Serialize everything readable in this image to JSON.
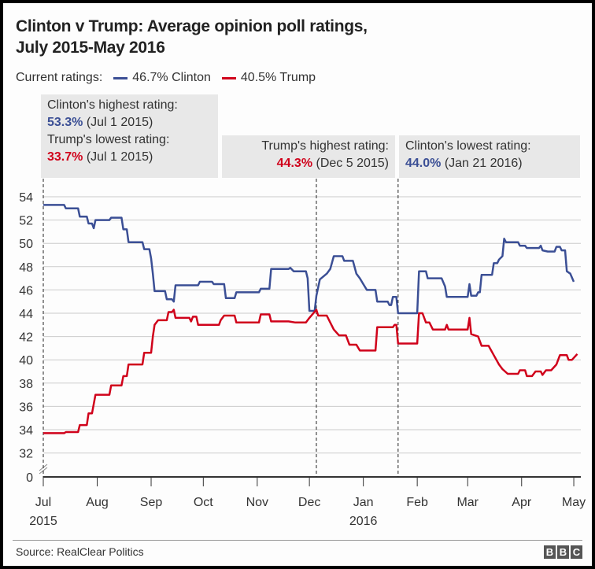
{
  "chart_data": {
    "type": "line",
    "title": "Clinton v Trump: Average opinion poll ratings, July 2015-May 2016",
    "title_lines": [
      "Clinton v Trump: Average opinion poll ratings,",
      "July 2015-May 2016"
    ],
    "legend": {
      "prefix": "Current ratings:",
      "items": [
        {
          "label": "46.7% Clinton",
          "color": "#3b4f95"
        },
        {
          "label": "40.5% Trump",
          "color": "#d0021b"
        }
      ],
      "placement": "top"
    },
    "y_ticks": [
      "54",
      "52",
      "50",
      "48",
      "46",
      "44",
      "42",
      "40",
      "38",
      "36",
      "34",
      "32",
      "0"
    ],
    "ylim": [
      32,
      54
    ],
    "y_axis_break": true,
    "grid": true,
    "x_ticks": [
      {
        "label": "Jul",
        "year": "2015",
        "date": "2015-07-01"
      },
      {
        "label": "Aug",
        "year": "",
        "date": "2015-08-01"
      },
      {
        "label": "Sep",
        "year": "",
        "date": "2015-09-01"
      },
      {
        "label": "Oct",
        "year": "",
        "date": "2015-10-01"
      },
      {
        "label": "Nov",
        "year": "",
        "date": "2015-11-01"
      },
      {
        "label": "Dec",
        "year": "",
        "date": "2015-12-01"
      },
      {
        "label": "Jan",
        "year": "2016",
        "date": "2016-01-01"
      },
      {
        "label": "Feb",
        "year": "",
        "date": "2016-02-01"
      },
      {
        "label": "Mar",
        "year": "",
        "date": "2016-03-01"
      },
      {
        "label": "Apr",
        "year": "",
        "date": "2016-04-01"
      },
      {
        "label": "May",
        "year": "",
        "date": "2016-05-01"
      }
    ],
    "annotations": [
      {
        "label": "Clinton's highest rating:",
        "value": "53.3%",
        "date": "(Jul 1 2015)",
        "color": "#3b4f95"
      },
      {
        "label": "Trump's lowest rating:",
        "value": "33.7%",
        "date": "(Jul 1 2015)",
        "color": "#d0021b"
      },
      {
        "label": "Trump's highest rating:",
        "value": "44.3%",
        "date": "(Dec 5 2015)",
        "color": "#d0021b"
      },
      {
        "label": "Clinton's lowest rating:",
        "value": "44.0%",
        "date": "(Jan 21 2016)",
        "color": "#3b4f95"
      }
    ],
    "marker_dates": [
      "2015-07-01",
      "2015-12-05",
      "2016-01-21"
    ],
    "series": [
      {
        "name": "Clinton",
        "color": "#3b4f95",
        "points": [
          [
            "2015-07-01",
            53.3
          ],
          [
            "2015-07-13",
            53.3
          ],
          [
            "2015-07-14",
            53.0
          ],
          [
            "2015-07-21",
            53.0
          ],
          [
            "2015-07-22",
            52.3
          ],
          [
            "2015-07-26",
            52.3
          ],
          [
            "2015-07-27",
            51.7
          ],
          [
            "2015-07-29",
            51.7
          ],
          [
            "2015-07-30",
            51.3
          ],
          [
            "2015-07-31",
            52.0
          ],
          [
            "2015-08-08",
            52.0
          ],
          [
            "2015-08-09",
            52.2
          ],
          [
            "2015-08-15",
            52.2
          ],
          [
            "2015-08-16",
            51.2
          ],
          [
            "2015-08-18",
            51.2
          ],
          [
            "2015-08-19",
            50.1
          ],
          [
            "2015-08-27",
            50.1
          ],
          [
            "2015-08-28",
            49.5
          ],
          [
            "2015-08-31",
            49.5
          ],
          [
            "2015-09-01",
            48.7
          ],
          [
            "2015-09-02",
            47.4
          ],
          [
            "2015-09-03",
            45.9
          ],
          [
            "2015-09-09",
            45.9
          ],
          [
            "2015-09-10",
            45.2
          ],
          [
            "2015-09-13",
            45.2
          ],
          [
            "2015-09-14",
            45.0
          ],
          [
            "2015-09-15",
            46.4
          ],
          [
            "2015-09-28",
            46.4
          ],
          [
            "2015-09-29",
            46.7
          ],
          [
            "2015-10-06",
            46.7
          ],
          [
            "2015-10-07",
            46.5
          ],
          [
            "2015-10-13",
            46.5
          ],
          [
            "2015-10-14",
            45.3
          ],
          [
            "2015-10-19",
            45.3
          ],
          [
            "2015-10-20",
            45.8
          ],
          [
            "2015-11-02",
            45.8
          ],
          [
            "2015-11-03",
            46.1
          ],
          [
            "2015-11-08",
            46.1
          ],
          [
            "2015-11-09",
            47.8
          ],
          [
            "2015-11-19",
            47.8
          ],
          [
            "2015-11-20",
            47.9
          ],
          [
            "2015-11-22",
            47.6
          ],
          [
            "2015-11-29",
            47.6
          ],
          [
            "2015-11-30",
            47.0
          ],
          [
            "2015-12-01",
            44.2
          ],
          [
            "2015-12-04",
            44.2
          ],
          [
            "2015-12-05",
            45.5
          ],
          [
            "2015-12-07",
            46.9
          ],
          [
            "2015-12-11",
            47.4
          ],
          [
            "2015-12-13",
            47.8
          ],
          [
            "2015-12-15",
            48.9
          ],
          [
            "2015-12-20",
            48.9
          ],
          [
            "2015-12-21",
            48.5
          ],
          [
            "2015-12-26",
            48.5
          ],
          [
            "2015-12-28",
            47.4
          ],
          [
            "2015-12-30",
            47.0
          ],
          [
            "2016-01-01",
            46.5
          ],
          [
            "2016-01-03",
            46.0
          ],
          [
            "2016-01-08",
            46.0
          ],
          [
            "2016-01-09",
            45.0
          ],
          [
            "2016-01-15",
            45.0
          ],
          [
            "2016-01-16",
            44.7
          ],
          [
            "2016-01-17",
            44.7
          ],
          [
            "2016-01-18",
            45.4
          ],
          [
            "2016-01-20",
            45.4
          ],
          [
            "2016-01-21",
            44.0
          ],
          [
            "2016-02-01",
            44.0
          ],
          [
            "2016-02-02",
            47.6
          ],
          [
            "2016-02-06",
            47.6
          ],
          [
            "2016-02-07",
            47.0
          ],
          [
            "2016-02-15",
            47.0
          ],
          [
            "2016-02-17",
            46.3
          ],
          [
            "2016-02-18",
            45.4
          ],
          [
            "2016-03-01",
            45.4
          ],
          [
            "2016-03-02",
            46.5
          ],
          [
            "2016-03-03",
            45.5
          ],
          [
            "2016-03-06",
            45.5
          ],
          [
            "2016-03-07",
            45.8
          ],
          [
            "2016-03-08",
            45.8
          ],
          [
            "2016-03-09",
            47.3
          ],
          [
            "2016-03-15",
            47.3
          ],
          [
            "2016-03-16",
            48.3
          ],
          [
            "2016-03-18",
            48.3
          ],
          [
            "2016-03-19",
            48.6
          ],
          [
            "2016-03-21",
            48.9
          ],
          [
            "2016-03-22",
            50.4
          ],
          [
            "2016-03-23",
            50.1
          ],
          [
            "2016-03-30",
            50.1
          ],
          [
            "2016-03-31",
            49.8
          ],
          [
            "2016-04-03",
            49.8
          ],
          [
            "2016-04-04",
            49.6
          ],
          [
            "2016-04-11",
            49.6
          ],
          [
            "2016-04-12",
            49.8
          ],
          [
            "2016-04-13",
            49.4
          ],
          [
            "2016-04-16",
            49.3
          ],
          [
            "2016-04-20",
            49.3
          ],
          [
            "2016-04-21",
            49.7
          ],
          [
            "2016-04-23",
            49.7
          ],
          [
            "2016-04-24",
            49.4
          ],
          [
            "2016-04-26",
            49.4
          ],
          [
            "2016-04-27",
            47.6
          ],
          [
            "2016-04-29",
            47.4
          ],
          [
            "2016-05-01",
            46.7
          ]
        ]
      },
      {
        "name": "Trump",
        "color": "#d0021b",
        "points": [
          [
            "2015-07-01",
            33.7
          ],
          [
            "2015-07-13",
            33.7
          ],
          [
            "2015-07-14",
            33.8
          ],
          [
            "2015-07-21",
            33.8
          ],
          [
            "2015-07-22",
            34.4
          ],
          [
            "2015-07-26",
            34.4
          ],
          [
            "2015-07-27",
            35.4
          ],
          [
            "2015-07-29",
            35.4
          ],
          [
            "2015-07-31",
            37.0
          ],
          [
            "2015-08-08",
            37.0
          ],
          [
            "2015-08-09",
            37.8
          ],
          [
            "2015-08-15",
            37.8
          ],
          [
            "2015-08-16",
            38.6
          ],
          [
            "2015-08-18",
            38.6
          ],
          [
            "2015-08-19",
            39.6
          ],
          [
            "2015-08-27",
            39.6
          ],
          [
            "2015-08-28",
            40.6
          ],
          [
            "2015-09-01",
            40.6
          ],
          [
            "2015-09-02",
            42.0
          ],
          [
            "2015-09-03",
            43.0
          ],
          [
            "2015-09-05",
            43.4
          ],
          [
            "2015-09-10",
            43.4
          ],
          [
            "2015-09-11",
            44.1
          ],
          [
            "2015-09-13",
            44.1
          ],
          [
            "2015-09-14",
            44.3
          ],
          [
            "2015-09-15",
            43.6
          ],
          [
            "2015-09-23",
            43.6
          ],
          [
            "2015-09-24",
            43.3
          ],
          [
            "2015-09-25",
            43.7
          ],
          [
            "2015-09-27",
            43.7
          ],
          [
            "2015-09-28",
            43.0
          ],
          [
            "2015-10-10",
            43.0
          ],
          [
            "2015-10-11",
            43.4
          ],
          [
            "2015-10-13",
            43.8
          ],
          [
            "2015-10-19",
            43.8
          ],
          [
            "2015-10-20",
            43.2
          ],
          [
            "2015-11-02",
            43.2
          ],
          [
            "2015-11-03",
            43.9
          ],
          [
            "2015-11-08",
            43.9
          ],
          [
            "2015-11-09",
            43.3
          ],
          [
            "2015-11-19",
            43.3
          ],
          [
            "2015-11-23",
            43.2
          ],
          [
            "2015-11-29",
            43.2
          ],
          [
            "2015-12-01",
            43.6
          ],
          [
            "2015-12-05",
            44.3
          ],
          [
            "2015-12-06",
            43.8
          ],
          [
            "2015-12-11",
            43.8
          ],
          [
            "2015-12-13",
            43.2
          ],
          [
            "2015-12-15",
            42.6
          ],
          [
            "2015-12-18",
            42.1
          ],
          [
            "2015-12-22",
            42.1
          ],
          [
            "2015-12-24",
            41.3
          ],
          [
            "2015-12-28",
            41.3
          ],
          [
            "2015-12-30",
            40.8
          ],
          [
            "2016-01-08",
            40.8
          ],
          [
            "2016-01-09",
            42.8
          ],
          [
            "2016-01-18",
            42.8
          ],
          [
            "2016-01-19",
            43.0
          ],
          [
            "2016-01-20",
            43.0
          ],
          [
            "2016-01-21",
            41.4
          ],
          [
            "2016-02-01",
            41.4
          ],
          [
            "2016-02-02",
            44.0
          ],
          [
            "2016-02-04",
            44.0
          ],
          [
            "2016-02-06",
            43.2
          ],
          [
            "2016-02-08",
            43.2
          ],
          [
            "2016-02-10",
            42.6
          ],
          [
            "2016-02-17",
            42.6
          ],
          [
            "2016-02-18",
            43.0
          ],
          [
            "2016-02-19",
            42.6
          ],
          [
            "2016-03-01",
            42.6
          ],
          [
            "2016-03-02",
            43.6
          ],
          [
            "2016-03-03",
            42.2
          ],
          [
            "2016-03-07",
            42.0
          ],
          [
            "2016-03-09",
            41.2
          ],
          [
            "2016-03-13",
            41.2
          ],
          [
            "2016-03-16",
            40.4
          ],
          [
            "2016-03-19",
            39.6
          ],
          [
            "2016-03-21",
            39.2
          ],
          [
            "2016-03-24",
            38.8
          ],
          [
            "2016-03-30",
            38.8
          ],
          [
            "2016-03-31",
            39.1
          ],
          [
            "2016-04-03",
            39.1
          ],
          [
            "2016-04-04",
            38.6
          ],
          [
            "2016-04-07",
            38.6
          ],
          [
            "2016-04-09",
            39.0
          ],
          [
            "2016-04-12",
            39.0
          ],
          [
            "2016-04-13",
            38.7
          ],
          [
            "2016-04-15",
            39.1
          ],
          [
            "2016-04-18",
            39.1
          ],
          [
            "2016-04-21",
            39.6
          ],
          [
            "2016-04-23",
            40.4
          ],
          [
            "2016-04-27",
            40.4
          ],
          [
            "2016-04-28",
            40.0
          ],
          [
            "2016-04-30",
            40.0
          ],
          [
            "2016-05-03",
            40.5
          ]
        ]
      }
    ]
  },
  "footer": {
    "source": "Source: RealClear Politics",
    "logo": "BBC"
  }
}
